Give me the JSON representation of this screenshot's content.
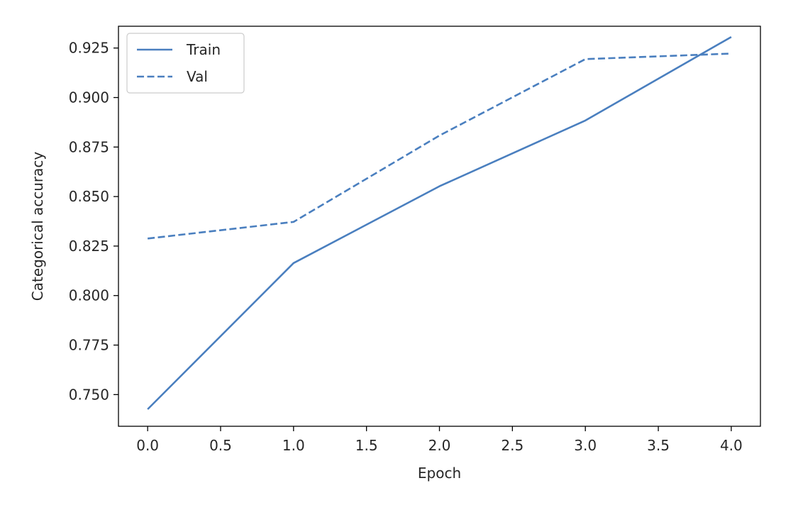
{
  "chart_data": {
    "type": "line",
    "xlabel": "Epoch",
    "ylabel": "Categorical accuracy",
    "xlim": [
      -0.2,
      4.2
    ],
    "ylim": [
      0.734,
      0.936
    ],
    "xticks": [
      0.0,
      0.5,
      1.0,
      1.5,
      2.0,
      2.5,
      3.0,
      3.5,
      4.0
    ],
    "xtick_labels": [
      "0.0",
      "0.5",
      "1.0",
      "1.5",
      "2.0",
      "2.5",
      "3.0",
      "3.5",
      "4.0"
    ],
    "yticks": [
      0.75,
      0.775,
      0.8,
      0.825,
      0.85,
      0.875,
      0.9,
      0.925
    ],
    "ytick_labels": [
      "0.750",
      "0.775",
      "0.800",
      "0.825",
      "0.850",
      "0.875",
      "0.900",
      "0.925"
    ],
    "grid": false,
    "legend_position": "top-left",
    "color": "#4a7fbf",
    "series": [
      {
        "name": "Train",
        "style": "solid",
        "x": [
          0,
          1,
          2,
          3,
          4
        ],
        "y": [
          0.7426,
          0.8164,
          0.8552,
          0.8884,
          0.9306
        ]
      },
      {
        "name": "Val",
        "style": "dashed",
        "x": [
          0,
          1,
          2,
          3,
          4
        ],
        "y": [
          0.8288,
          0.8372,
          0.8808,
          0.9194,
          0.9222
        ]
      }
    ]
  }
}
